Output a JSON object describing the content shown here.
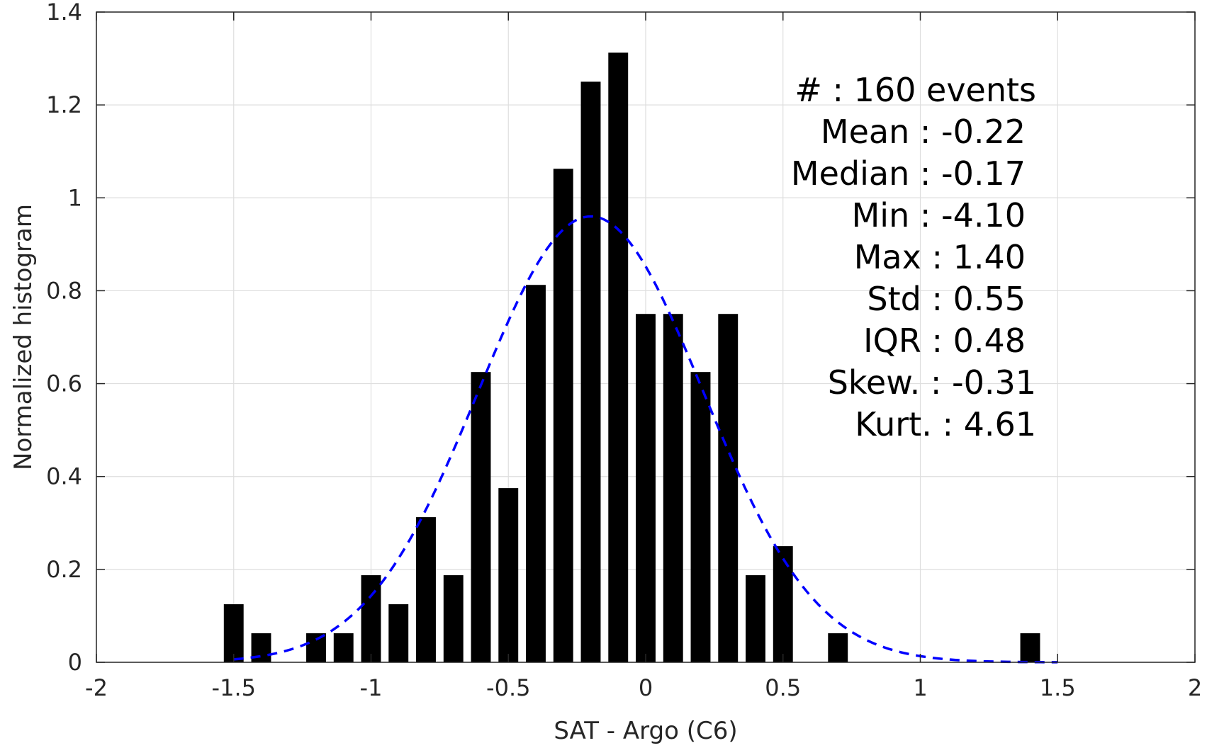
{
  "chart_data": {
    "type": "bar",
    "xlabel": "SAT - Argo (C6)",
    "ylabel": "Normalized histogram",
    "xlim": [
      -2,
      2
    ],
    "ylim": [
      0,
      1.4
    ],
    "x_ticks": [
      -2,
      -1.5,
      -1,
      -0.5,
      0,
      0.5,
      1,
      1.5,
      2
    ],
    "x_tick_labels": [
      "-2",
      "-1.5",
      "-1",
      "-0.5",
      "0",
      "0.5",
      "1",
      "1.5",
      "2"
    ],
    "y_ticks": [
      0,
      0.2,
      0.4,
      0.6,
      0.8,
      1,
      1.2,
      1.4
    ],
    "y_tick_labels": [
      "0",
      "0.2",
      "0.4",
      "0.6",
      "0.8",
      "1",
      "1.2",
      "1.4"
    ],
    "grid": true,
    "bin_width": 0.1,
    "bars": [
      {
        "x": -1.5,
        "y": 0.125
      },
      {
        "x": -1.4,
        "y": 0.0625
      },
      {
        "x": -1.2,
        "y": 0.0625
      },
      {
        "x": -1.1,
        "y": 0.0625
      },
      {
        "x": -1.0,
        "y": 0.1875
      },
      {
        "x": -0.9,
        "y": 0.125
      },
      {
        "x": -0.8,
        "y": 0.3125
      },
      {
        "x": -0.7,
        "y": 0.1875
      },
      {
        "x": -0.6,
        "y": 0.625
      },
      {
        "x": -0.5,
        "y": 0.375
      },
      {
        "x": -0.4,
        "y": 0.8125
      },
      {
        "x": -0.3,
        "y": 1.0625
      },
      {
        "x": -0.2,
        "y": 1.25
      },
      {
        "x": -0.1,
        "y": 1.3125
      },
      {
        "x": 0.0,
        "y": 0.75
      },
      {
        "x": 0.1,
        "y": 0.75
      },
      {
        "x": 0.2,
        "y": 0.625
      },
      {
        "x": 0.3,
        "y": 0.75
      },
      {
        "x": 0.4,
        "y": 0.1875
      },
      {
        "x": 0.5,
        "y": 0.25
      },
      {
        "x": 0.7,
        "y": 0.0625
      },
      {
        "x": 1.4,
        "y": 0.0625
      }
    ],
    "fit_curve": {
      "style": "dashed",
      "color": "#0000ff",
      "x_range": [
        -1.5,
        1.5
      ],
      "peak_value": 0.96,
      "peak_x": -0.2,
      "std": 0.41
    },
    "bar_color": "#000000",
    "stats": [
      "#  : 160 events",
      "Mean : -0.22",
      "Median : -0.17",
      "Min : -4.10",
      "Max : 1.40",
      "Std : 0.55",
      "IQR : 0.48",
      "Skew. : -0.31",
      "Kurt. : 4.61"
    ]
  }
}
